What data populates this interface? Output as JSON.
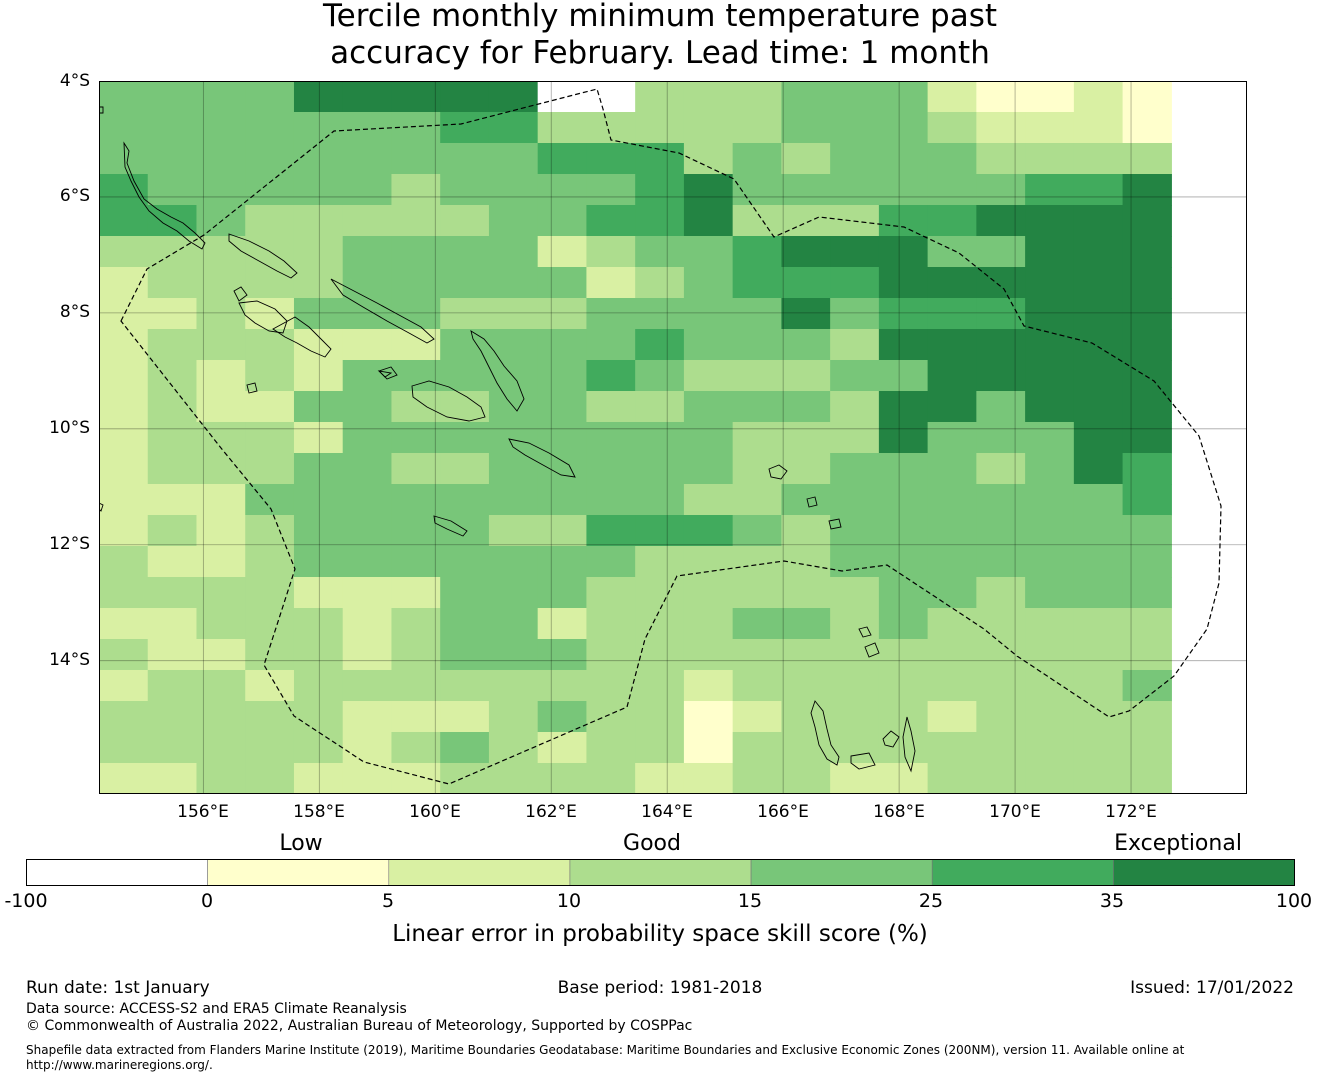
{
  "title": {
    "line1": "Tercile monthly minimum temperature past",
    "line2": "accuracy for February. Lead time: 1 month"
  },
  "axes": {
    "lat_labels": [
      "4°S",
      "6°S",
      "8°S",
      "10°S",
      "12°S",
      "14°S"
    ],
    "lon_labels": [
      "156°E",
      "158°E",
      "160°E",
      "162°E",
      "164°E",
      "166°E",
      "168°E",
      "170°E",
      "172°E"
    ],
    "lat_range": [
      -16.3,
      -4.0
    ],
    "lon_range": [
      154.2,
      174.0
    ]
  },
  "colorbar": {
    "categories": [
      "Low",
      "Good",
      "Exceptional"
    ],
    "ticks": [
      "-100",
      "0",
      "5",
      "10",
      "15",
      "25",
      "35",
      "100"
    ],
    "colors": [
      "#ffffff",
      "#ffffcc",
      "#d9f0a3",
      "#addd8e",
      "#78c679",
      "#41ab5d",
      "#238443"
    ],
    "label": "Linear error in probability space skill score (%)"
  },
  "grid_levels": [
    "4444666660033344421121",
    "4444444553333344432221",
    "4444444445553434443333",
    "5444443444456444444556",
    "5543333344556333556666",
    "3333344442344566644666",
    "2333344444234555666666",
    "2232444333444464555666",
    "2333222444454443666666",
    "2323244444543334466666",
    "2322443344334443664666",
    "2333244444444333644466",
    "2333443344444334443465",
    "2224444444443344444445",
    "2323444433555434444444",
    "3223444444433334444444",
    "3333222444333333443444",
    "2233323442333443433333",
    "3223323444333333333333",
    "2332333333332333333334",
    "3333322234331233323333",
    "3333323432331333333333",
    "2233222333322332233333"
  ],
  "footer": {
    "run_date": "Run date: 1st January",
    "base_period": "Base period: 1981-2018",
    "issued": "Issued: 17/01/2022",
    "data_source": "Data source: ACCESS-S2 and ERA5 Climate Reanalysis",
    "copyright": "© Commonwealth of Australia 2022, Australian Bureau of Meteorology, Supported by COSPPac",
    "shapefile_line1": "Shapefile data extracted from Flanders Marine Institute (2019), Maritime Boundaries Geodatabase: Maritime Boundaries and Exclusive Economic Zones (200NM), version 11. Available online at",
    "shapefile_line2": "http://www.marineregions.org/."
  }
}
